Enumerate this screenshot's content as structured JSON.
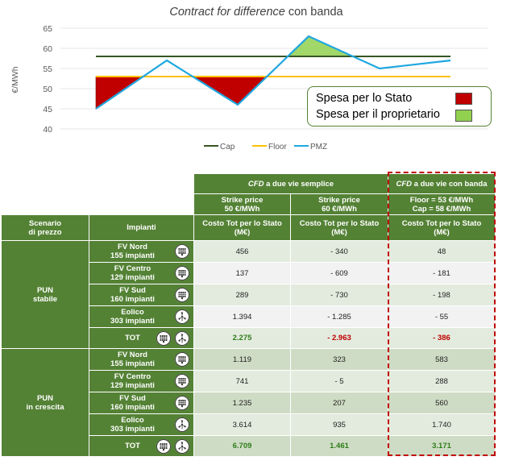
{
  "chart_data": {
    "type": "line",
    "title_italic": "Contract for difference",
    "title_rest": " con banda",
    "ylabel": "€/MWh",
    "ylim": [
      40,
      65
    ],
    "yticks": [
      "40",
      "45",
      "50",
      "55",
      "60",
      "65"
    ],
    "x": [
      1,
      2,
      3,
      4,
      5,
      6
    ],
    "series": [
      {
        "name": "Cap",
        "color": "#375623",
        "values": [
          58,
          58,
          58,
          58,
          58,
          58
        ]
      },
      {
        "name": "Floor",
        "color": "#ffc000",
        "values": [
          53,
          53,
          53,
          53,
          53,
          53
        ]
      },
      {
        "name": "PMZ",
        "color": "#1fa7e0",
        "values": [
          45,
          57,
          46,
          63,
          55,
          57
        ]
      }
    ],
    "areas": [
      {
        "label": "Spesa per lo Stato",
        "color": "#c00000"
      },
      {
        "label": "Spesa per il proprietario",
        "color": "#92d050"
      }
    ]
  },
  "table": {
    "group1_italic": "CFD",
    "group1_rest": " a due vie semplice",
    "group2_italic": "CFD",
    "group2_rest": " a due vie con banda",
    "strike1_a": "Strike price",
    "strike1_b": "50 €/MWh",
    "strike2_a": "Strike price",
    "strike2_b": "60 €/MWh",
    "band_a": "Floor = 53 €/MWh",
    "band_b": "Cap = 58 €/MWh",
    "scenario_a": "Scenario",
    "scenario_b": "di prezzo",
    "impianti": "Impianti",
    "cost_a": "Costo Tot per lo Stato",
    "cost_b": "(M€)",
    "scenarios": [
      {
        "name_a": "PUN",
        "name_b": "stabile",
        "rows": [
          {
            "p1": "FV Nord",
            "p2": "155 impianti",
            "icon": "solar-panel-icon",
            "v": [
              "456",
              "- 340",
              "48"
            ]
          },
          {
            "p1": "FV Centro",
            "p2": "129 impianti",
            "icon": "solar-panel-icon",
            "v": [
              "137",
              "- 609",
              "- 181"
            ]
          },
          {
            "p1": "FV Sud",
            "p2": "160 impianti",
            "icon": "solar-panel-icon",
            "v": [
              "289",
              "- 730",
              "- 198"
            ]
          },
          {
            "p1": "Eolico",
            "p2": "303 impianti",
            "icon": "wind-turbine-icon",
            "v": [
              "1.394",
              "- 1.285",
              "- 55"
            ]
          }
        ],
        "tot_label": "TOT",
        "tot": [
          "2.275",
          "- 2.963",
          "- 386"
        ]
      },
      {
        "name_a": "PUN",
        "name_b": "in crescita",
        "rows": [
          {
            "p1": "FV Nord",
            "p2": "155 impianti",
            "icon": "solar-panel-icon",
            "v": [
              "1.119",
              "323",
              "583"
            ]
          },
          {
            "p1": "FV Centro",
            "p2": "129 impianti",
            "icon": "solar-panel-icon",
            "v": [
              "741",
              "- 5",
              "288"
            ]
          },
          {
            "p1": "FV Sud",
            "p2": "160 impianti",
            "icon": "solar-panel-icon",
            "v": [
              "1.235",
              "207",
              "560"
            ]
          },
          {
            "p1": "Eolico",
            "p2": "303 impianti",
            "icon": "wind-turbine-icon",
            "v": [
              "3.614",
              "935",
              "1.740"
            ]
          }
        ],
        "tot_label": "TOT",
        "tot": [
          "6.709",
          "1.461",
          "3.171"
        ]
      }
    ]
  }
}
